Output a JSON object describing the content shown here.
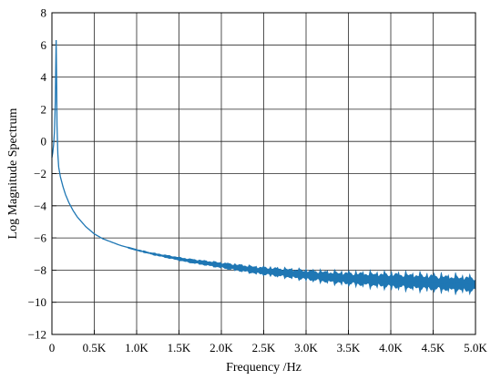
{
  "chart_data": {
    "type": "line",
    "title": "",
    "xlabel": "Frequency /Hz",
    "ylabel": "Log Magnitude Spectrum",
    "xlim": [
      0,
      5000
    ],
    "ylim": [
      -12,
      8
    ],
    "grid": true,
    "xticks": [
      {
        "value": 0,
        "label": "0"
      },
      {
        "value": 500,
        "label": "0.5K"
      },
      {
        "value": 1000,
        "label": "1.0K"
      },
      {
        "value": 1500,
        "label": "1.5K"
      },
      {
        "value": 2000,
        "label": "2.0K"
      },
      {
        "value": 2500,
        "label": "2.5K"
      },
      {
        "value": 3000,
        "label": "3.0K"
      },
      {
        "value": 3500,
        "label": "3.5K"
      },
      {
        "value": 4000,
        "label": "4.0K"
      },
      {
        "value": 4500,
        "label": "4.5K"
      },
      {
        "value": 5000,
        "label": "5.0K"
      }
    ],
    "yticks": [
      {
        "value": 8,
        "label": "8"
      },
      {
        "value": 6,
        "label": "6"
      },
      {
        "value": 4,
        "label": "4"
      },
      {
        "value": 2,
        "label": "2"
      },
      {
        "value": 0,
        "label": "0"
      },
      {
        "value": -2,
        "label": "−2"
      },
      {
        "value": -4,
        "label": "−4"
      },
      {
        "value": -6,
        "label": "−6"
      },
      {
        "value": -8,
        "label": "−8"
      },
      {
        "value": -10,
        "label": "−10"
      },
      {
        "value": -12,
        "label": "−12"
      }
    ],
    "series": [
      {
        "color": "#1f77b4",
        "x": [
          0,
          10,
          20,
          30,
          40,
          45,
          50,
          55,
          60,
          70,
          80,
          100,
          130,
          160,
          200,
          250,
          300,
          400,
          500,
          600,
          700,
          800,
          900,
          1000,
          1200,
          1400,
          1600,
          1800,
          2000,
          2200,
          2400,
          2600,
          2800,
          3000,
          3300,
          3600,
          4000,
          4400,
          4800,
          5000
        ],
        "y": [
          -1.0,
          -0.7,
          -0.2,
          0.6,
          2.5,
          4.5,
          6.3,
          4.0,
          1.0,
          -0.8,
          -1.6,
          -2.2,
          -2.8,
          -3.3,
          -3.8,
          -4.3,
          -4.7,
          -5.3,
          -5.75,
          -6.05,
          -6.25,
          -6.45,
          -6.6,
          -6.75,
          -7.0,
          -7.2,
          -7.4,
          -7.55,
          -7.7,
          -7.85,
          -8.0,
          -8.1,
          -8.2,
          -8.3,
          -8.45,
          -8.55,
          -8.65,
          -8.75,
          -8.85,
          -8.9
        ]
      }
    ]
  }
}
